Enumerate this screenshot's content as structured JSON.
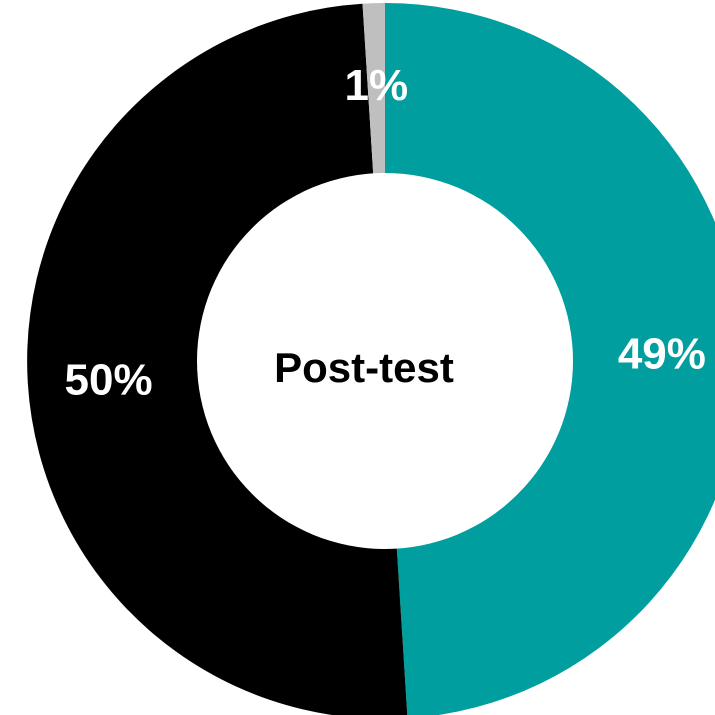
{
  "chart_data": {
    "type": "pie",
    "variant": "donut",
    "center_label": "Post-test",
    "slices": [
      {
        "value": 49,
        "label": "49%",
        "color": "#009E9E"
      },
      {
        "value": 50,
        "label": "50%",
        "color": "#000000"
      },
      {
        "value": 1,
        "label": "1%",
        "color": "#BFBFBF"
      }
    ],
    "legend": "none"
  }
}
